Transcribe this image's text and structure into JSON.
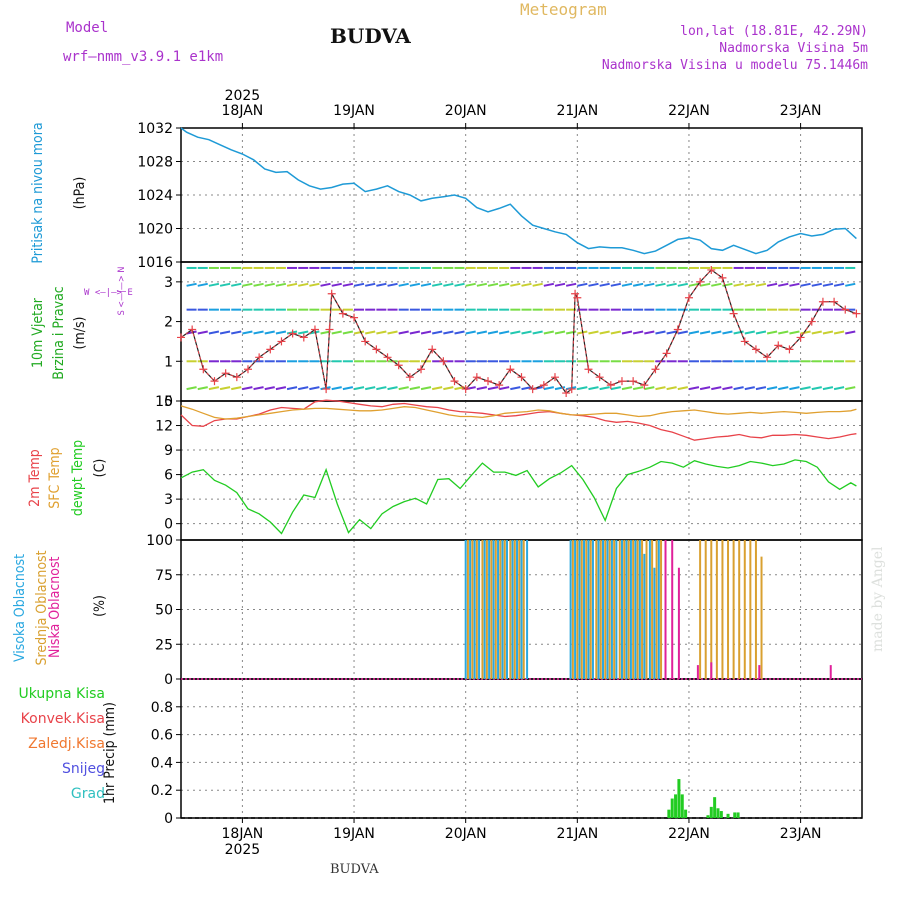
{
  "header": {
    "model_label": "Model",
    "model_name": "wrf—nmm_v3.9.1 e1km",
    "title": "Meteogram",
    "station": "BUDVA",
    "coords": "lon,lat (18.81E, 42.29N)",
    "elevation": "Nadmorska Visina 5m",
    "model_elevation": "Nadmorska Visina u modelu 75.1446m",
    "credit": "made by Angel"
  },
  "footer": {
    "station": "BUDVA"
  },
  "colors": {
    "pressure": "#1e9ad6",
    "wind_label": "#22aa22",
    "temp2m": "#e8434a",
    "sfc": "#e0a030",
    "dewpt": "#22cc22",
    "high": "#2aa8e0",
    "mid": "#d9a030",
    "low": "#e0209a",
    "precip": "#22cc22",
    "conv": "#e8434a",
    "frz": "#f07830",
    "snow": "#5050e0",
    "grad": "#30c0c0",
    "violet": "#aa33cc"
  },
  "chart_data": [
    {
      "type": "line",
      "panel": "pressure",
      "ylabel_1": "Pritisak na nivou mora",
      "ylabel_unit": "(hPa)",
      "ylim": [
        1016,
        1032
      ],
      "yticks": [
        1016,
        1020,
        1024,
        1028,
        1032
      ],
      "series": [
        {
          "x": [
            17.45,
            17.5,
            17.6,
            17.7,
            17.8,
            17.9,
            18.0,
            18.1,
            18.2,
            18.3,
            18.4,
            18.5,
            18.6,
            18.7,
            18.8,
            18.9,
            19.0,
            19.1,
            19.2,
            19.3,
            19.4,
            19.5,
            19.6,
            19.7,
            19.8,
            19.9,
            20.0,
            20.1,
            20.2,
            20.3,
            20.4,
            20.5,
            20.6,
            20.7,
            20.8,
            20.9,
            21.0,
            21.1,
            21.2,
            21.3,
            21.4,
            21.5,
            21.6,
            21.7,
            21.8,
            21.9,
            22.0,
            22.1,
            22.2,
            22.3,
            22.4,
            22.5,
            22.6,
            22.7,
            22.8,
            22.9,
            23.0,
            23.1,
            23.2,
            23.3,
            23.4,
            23.5
          ],
          "values": [
            1032,
            1031.5,
            1030.9,
            1030.6,
            1030.0,
            1029.4,
            1028.9,
            1028.2,
            1027.1,
            1026.7,
            1026.8,
            1025.8,
            1025.1,
            1024.7,
            1024.9,
            1025.3,
            1025.4,
            1024.4,
            1024.7,
            1025.1,
            1024.4,
            1024.0,
            1023.3,
            1023.6,
            1023.8,
            1024.0,
            1023.6,
            1022.5,
            1022.0,
            1022.4,
            1022.9,
            1021.5,
            1020.4,
            1020.0,
            1019.6,
            1019.3,
            1018.3,
            1017.6,
            1017.8,
            1017.7,
            1017.7,
            1017.4,
            1017.0,
            1017.3,
            1018.0,
            1018.7,
            1018.9,
            1018.6,
            1017.6,
            1017.4,
            1018.0,
            1017.5,
            1017.0,
            1017.4,
            1018.4,
            1019.0,
            1019.4,
            1019.1,
            1019.3,
            1019.9,
            1020.0,
            1018.8
          ]
        }
      ]
    },
    {
      "type": "line",
      "panel": "wind",
      "ylabel_1": "10m Vjetar",
      "ylabel_2": "Brzina i Pravac",
      "ylabel_unit": "(m/s)",
      "compass": "W <—|—> E",
      "compass_ns": "S <—|—> N",
      "ylim": [
        0,
        3.5
      ],
      "yticks": [
        0,
        1,
        2,
        3
      ],
      "series": [
        {
          "name": "speed",
          "x": [
            17.45,
            17.55,
            17.65,
            17.75,
            17.85,
            17.95,
            18.05,
            18.15,
            18.25,
            18.35,
            18.45,
            18.55,
            18.65,
            18.75,
            18.78,
            18.8,
            18.9,
            19.0,
            19.1,
            19.2,
            19.3,
            19.4,
            19.5,
            19.6,
            19.7,
            19.8,
            19.9,
            20.0,
            20.1,
            20.2,
            20.3,
            20.4,
            20.5,
            20.6,
            20.7,
            20.8,
            20.9,
            20.95,
            20.98,
            21.0,
            21.1,
            21.2,
            21.3,
            21.4,
            21.5,
            21.6,
            21.7,
            21.8,
            21.9,
            22.0,
            22.1,
            22.2,
            22.3,
            22.4,
            22.5,
            22.6,
            22.7,
            22.8,
            22.9,
            23.0,
            23.1,
            23.2,
            23.3,
            23.4,
            23.5
          ],
          "values": [
            1.6,
            1.8,
            0.8,
            0.5,
            0.7,
            0.6,
            0.8,
            1.1,
            1.3,
            1.5,
            1.7,
            1.6,
            1.8,
            0.3,
            1.8,
            2.7,
            2.2,
            2.1,
            1.5,
            1.3,
            1.1,
            0.9,
            0.6,
            0.8,
            1.3,
            1.0,
            0.5,
            0.3,
            0.6,
            0.5,
            0.4,
            0.8,
            0.6,
            0.3,
            0.4,
            0.6,
            0.2,
            0.3,
            2.7,
            2.6,
            0.8,
            0.6,
            0.4,
            0.5,
            0.5,
            0.4,
            0.8,
            1.2,
            1.8,
            2.6,
            3.0,
            3.3,
            3.1,
            2.2,
            1.5,
            1.3,
            1.1,
            1.4,
            1.3,
            1.6,
            2.0,
            2.5,
            2.5,
            2.3,
            2.2
          ]
        }
      ]
    },
    {
      "type": "line",
      "panel": "temperature",
      "ylabel_1": "2m Temp",
      "ylabel_2": "SFC Temp",
      "ylabel_3": "dewpt Temp",
      "ylabel_unit": "(C)",
      "ylim": [
        -2,
        15
      ],
      "yticks": [
        0,
        3,
        6,
        9,
        12,
        15
      ],
      "x": [
        17.45,
        17.55,
        17.65,
        17.75,
        17.85,
        17.95,
        18.05,
        18.15,
        18.25,
        18.35,
        18.45,
        18.55,
        18.65,
        18.75,
        18.85,
        18.95,
        19.05,
        19.15,
        19.25,
        19.35,
        19.45,
        19.55,
        19.65,
        19.75,
        19.85,
        19.95,
        20.05,
        20.15,
        20.25,
        20.35,
        20.45,
        20.55,
        20.65,
        20.75,
        20.85,
        20.95,
        21.05,
        21.15,
        21.25,
        21.35,
        21.45,
        21.55,
        21.65,
        21.75,
        21.85,
        21.95,
        22.05,
        22.15,
        22.25,
        22.35,
        22.45,
        22.55,
        22.65,
        22.75,
        22.85,
        22.95,
        23.05,
        23.15,
        23.25,
        23.35,
        23.45,
        23.5
      ],
      "series": [
        {
          "name": "2m Temp",
          "values": [
            13.3,
            12.0,
            11.9,
            12.6,
            12.8,
            12.8,
            13.1,
            13.4,
            13.9,
            14.2,
            14.1,
            14.0,
            14.9,
            15.1,
            15.0,
            14.8,
            14.6,
            14.4,
            14.3,
            14.6,
            14.7,
            14.5,
            14.3,
            14.2,
            13.9,
            13.7,
            13.6,
            13.5,
            13.3,
            13.1,
            13.2,
            13.4,
            13.6,
            13.7,
            13.5,
            13.3,
            13.2,
            13.0,
            12.6,
            12.4,
            12.5,
            12.3,
            12.0,
            11.5,
            11.2,
            10.7,
            10.2,
            10.4,
            10.6,
            10.7,
            10.9,
            10.6,
            10.5,
            10.8,
            10.8,
            10.9,
            10.8,
            10.6,
            10.4,
            10.6,
            10.9,
            11.0
          ]
        },
        {
          "name": "SFC Temp",
          "values": [
            14.4,
            14.0,
            13.5,
            13.0,
            12.8,
            12.9,
            13.1,
            13.3,
            13.5,
            13.7,
            13.9,
            14.0,
            14.1,
            14.1,
            14.0,
            13.9,
            13.8,
            13.8,
            13.9,
            14.1,
            14.3,
            14.2,
            13.9,
            13.6,
            13.3,
            13.1,
            13.1,
            13.0,
            13.2,
            13.5,
            13.6,
            13.7,
            13.9,
            13.8,
            13.5,
            13.3,
            13.3,
            13.4,
            13.5,
            13.5,
            13.3,
            13.1,
            13.2,
            13.5,
            13.7,
            13.8,
            13.9,
            13.7,
            13.5,
            13.4,
            13.5,
            13.6,
            13.5,
            13.6,
            13.7,
            13.6,
            13.5,
            13.6,
            13.7,
            13.7,
            13.8,
            14.0
          ]
        },
        {
          "name": "dewpt Temp",
          "values": [
            5.6,
            6.3,
            6.6,
            5.3,
            4.7,
            3.8,
            1.8,
            1.2,
            0.2,
            -1.2,
            1.4,
            3.5,
            3.2,
            6.6,
            2.4,
            -1.1,
            0.5,
            -0.6,
            1.2,
            2.1,
            2.7,
            3.1,
            2.4,
            5.4,
            5.5,
            4.3,
            5.9,
            7.4,
            6.3,
            6.3,
            5.9,
            6.5,
            4.5,
            5.5,
            6.2,
            7.1,
            5.4,
            3.2,
            0.4,
            4.3,
            6.0,
            6.4,
            6.9,
            7.6,
            7.4,
            6.9,
            7.7,
            7.3,
            7.0,
            6.8,
            7.1,
            7.6,
            7.4,
            7.1,
            7.3,
            7.8,
            7.6,
            6.9,
            5.1,
            4.2,
            5.0,
            4.6
          ]
        }
      ]
    },
    {
      "type": "bar",
      "panel": "clouds",
      "ylabel_1": "Visoka Oblacnost",
      "ylabel_2": "Srednja Oblacnost",
      "ylabel_3": "Niska Oblacnost",
      "ylabel_unit": "(%)",
      "ylim": [
        0,
        100
      ],
      "yticks": [
        0,
        25,
        50,
        75,
        100
      ],
      "series": [
        {
          "name": "Visoka Oblacnost",
          "x": [
            20.0,
            20.04,
            20.08,
            20.12,
            20.17,
            20.21,
            20.25,
            20.29,
            20.33,
            20.37,
            20.42,
            20.46,
            20.5,
            20.55,
            20.94,
            20.98,
            21.02,
            21.06,
            21.1,
            21.14,
            21.19,
            21.23,
            21.27,
            21.31,
            21.35,
            21.4,
            21.44,
            21.48,
            21.52,
            21.56,
            21.6,
            21.65,
            21.69,
            21.73
          ],
          "values": [
            100,
            100,
            100,
            100,
            100,
            100,
            100,
            100,
            100,
            100,
            100,
            100,
            100,
            100,
            100,
            100,
            100,
            100,
            100,
            100,
            100,
            100,
            100,
            100,
            100,
            100,
            100,
            100,
            100,
            100,
            90,
            100,
            80,
            100
          ]
        },
        {
          "name": "Srednja Oblacnost",
          "x": [
            20.02,
            20.06,
            20.1,
            20.15,
            20.19,
            20.23,
            20.27,
            20.31,
            20.35,
            20.4,
            20.44,
            20.48,
            20.52,
            20.96,
            21.0,
            21.04,
            21.08,
            21.12,
            21.17,
            21.21,
            21.25,
            21.29,
            21.33,
            21.38,
            21.42,
            21.46,
            21.5,
            21.54,
            21.58,
            21.62,
            21.67,
            21.71,
            21.75,
            22.1,
            22.15,
            22.2,
            22.25,
            22.3,
            22.35,
            22.4,
            22.45,
            22.5,
            22.55,
            22.6,
            22.65
          ],
          "values": [
            100,
            100,
            100,
            100,
            100,
            100,
            100,
            100,
            100,
            100,
            100,
            100,
            100,
            100,
            100,
            100,
            100,
            100,
            100,
            100,
            100,
            100,
            100,
            100,
            100,
            100,
            100,
            100,
            100,
            100,
            100,
            100,
            100,
            100,
            100,
            100,
            100,
            100,
            100,
            100,
            100,
            100,
            100,
            100,
            88
          ]
        },
        {
          "name": "Niska Oblacnost",
          "x": [
            21.79,
            21.85,
            21.91,
            22.08,
            22.2,
            22.63,
            23.27
          ],
          "values": [
            100,
            100,
            80,
            10,
            12,
            10,
            10
          ]
        }
      ]
    },
    {
      "type": "bar",
      "panel": "precip",
      "labels": [
        "Ukupna Kisa",
        "Konvek.Kisa",
        "Zaledj.Kisa",
        "Snijeg",
        "Grad"
      ],
      "ylabel": "1hr Precip (mm)",
      "ylim": [
        0,
        1.0
      ],
      "yticks": [
        0,
        0.2,
        0.4,
        0.6,
        0.8
      ],
      "series": [
        {
          "name": "Ukupna Kisa",
          "x": [
            21.82,
            21.85,
            21.88,
            21.91,
            21.94,
            21.97,
            22.17,
            22.2,
            22.23,
            22.26,
            22.29,
            22.35,
            22.41,
            22.44
          ],
          "values": [
            0.06,
            0.14,
            0.17,
            0.28,
            0.17,
            0.06,
            0.02,
            0.08,
            0.15,
            0.07,
            0.05,
            0.03,
            0.04,
            0.04
          ]
        }
      ]
    }
  ],
  "xaxis": {
    "year_top": "2025",
    "year_bottom": "2025",
    "days": [
      "18JAN",
      "19JAN",
      "20JAN",
      "21JAN",
      "22JAN",
      "23JAN"
    ],
    "day_values": [
      18,
      19,
      20,
      21,
      22,
      23
    ],
    "xlim": [
      17.45,
      23.55
    ]
  }
}
